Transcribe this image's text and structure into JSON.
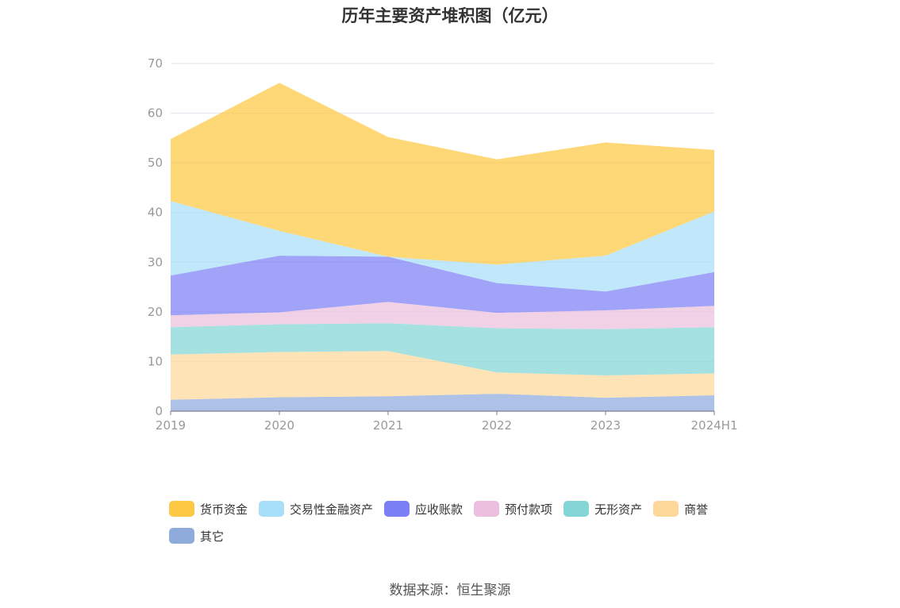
{
  "chart_data": {
    "type": "area",
    "stacked": true,
    "title": "历年主要资产堆积图（亿元）",
    "categories": [
      "2019",
      "2020",
      "2021",
      "2022",
      "2023",
      "2024H1"
    ],
    "ylim": [
      0,
      70
    ],
    "yticks": [
      0,
      10,
      20,
      30,
      40,
      50,
      60,
      70
    ],
    "grid": true,
    "legend_position": "bottom",
    "series": [
      {
        "name": "其它",
        "color": "#8eabdc",
        "values": [
          2.3,
          2.8,
          3.0,
          3.5,
          2.7,
          3.2
        ]
      },
      {
        "name": "商誉",
        "color": "#fdd89a",
        "values": [
          9.1,
          9.1,
          9.1,
          4.3,
          4.5,
          4.4
        ]
      },
      {
        "name": "无形资产",
        "color": "#83d5d6",
        "values": [
          5.5,
          5.6,
          5.6,
          8.9,
          9.3,
          9.3
        ]
      },
      {
        "name": "预付款项",
        "color": "#ebbfdd",
        "values": [
          2.4,
          2.4,
          4.3,
          3.1,
          3.8,
          4.3
        ]
      },
      {
        "name": "应收账款",
        "color": "#7b7ff5",
        "values": [
          8.0,
          11.4,
          9.1,
          6.0,
          3.8,
          6.8
        ]
      },
      {
        "name": "交易性金融资产",
        "color": "#a7dff8",
        "values": [
          15.0,
          5.0,
          0.0,
          3.7,
          7.2,
          12.2
        ]
      },
      {
        "name": "货币资金",
        "color": "#fdc843",
        "values": [
          12.5,
          29.8,
          24.1,
          21.2,
          22.8,
          12.4
        ]
      }
    ],
    "legend_order": [
      "货币资金",
      "交易性金融资产",
      "应收账款",
      "预付款项",
      "无形资产",
      "商誉",
      "其它"
    ]
  },
  "source": "数据来源：恒生聚源"
}
